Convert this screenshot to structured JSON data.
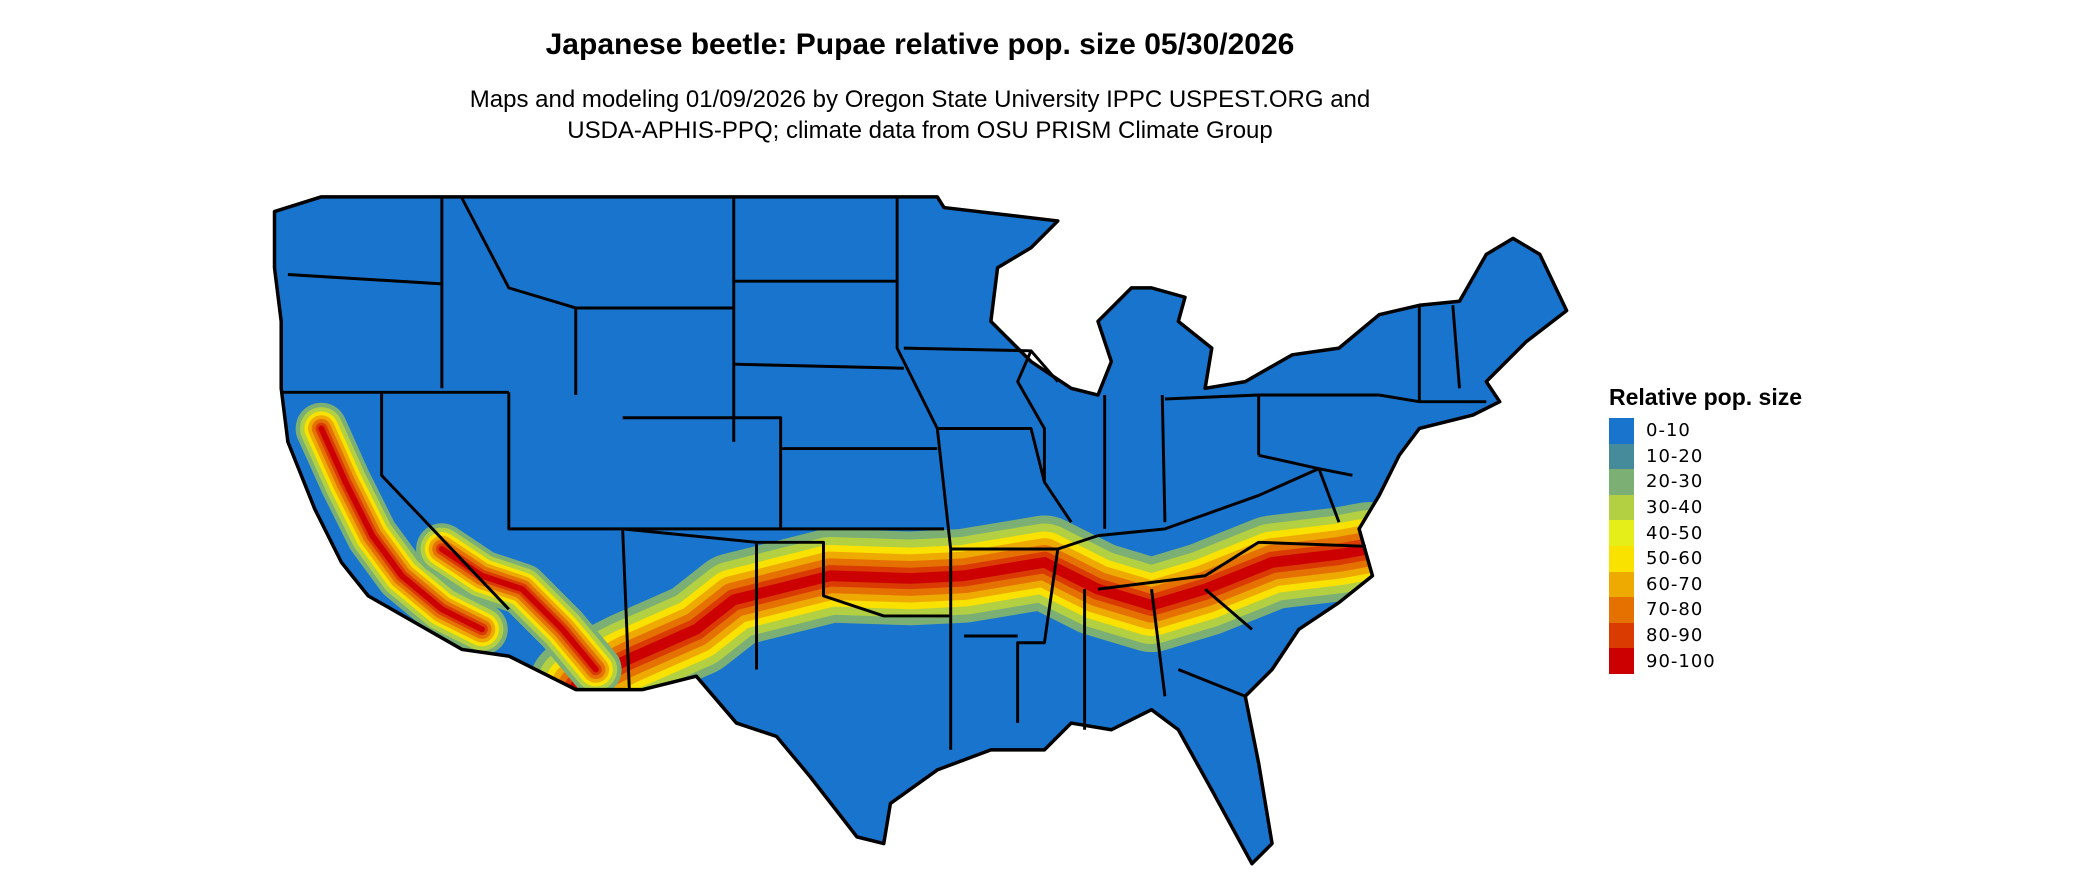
{
  "title": "Japanese beetle: Pupae relative pop. size 05/30/2026",
  "subtitle_line1": "Maps and modeling 01/09/2026 by Oregon State University IPPC USPEST.ORG and",
  "subtitle_line2": "USDA-APHIS-PPQ; climate data from OSU PRISM Climate Group",
  "legend": {
    "title": "Relative pop. size",
    "placement": "right",
    "items": [
      {
        "label": "0-10",
        "color": "#1874CD"
      },
      {
        "label": "10-20",
        "color": "#458B9A"
      },
      {
        "label": "20-30",
        "color": "#7BAF74"
      },
      {
        "label": "30-40",
        "color": "#B3D043"
      },
      {
        "label": "40-50",
        "color": "#E6EE1A"
      },
      {
        "label": "50-60",
        "color": "#F9E100"
      },
      {
        "label": "60-70",
        "color": "#EEAA00"
      },
      {
        "label": "70-80",
        "color": "#E57200"
      },
      {
        "label": "80-90",
        "color": "#DA3B00"
      },
      {
        "label": "90-100",
        "color": "#CC0000"
      }
    ]
  },
  "map": {
    "region": "Contiguous United States",
    "background_class": "0-10",
    "hotspot_regions": [
      "Southern Plains to Mid-Atlantic band (OK, AR, TN, NC, VA)",
      "California Central Valley",
      "Southern Arizona / New Mexico"
    ],
    "border_color": "#000000"
  }
}
